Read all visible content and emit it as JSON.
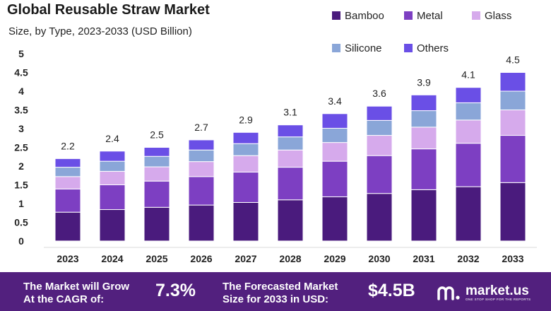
{
  "header": {
    "title": "Global Reusable Straw Market",
    "subtitle": "Size, by Type, 2023-2033 (USD Billion)"
  },
  "colors": {
    "Bamboo": "#4a1b7d",
    "Metal": "#7d3fc2",
    "Glass": "#d6aaec",
    "Silicone": "#8aa6d8",
    "Others": "#6a4fe6",
    "banner": "#52207e"
  },
  "chart_data": {
    "type": "bar",
    "stacked": true,
    "title": "Global Reusable Straw Market",
    "subtitle": "Size, by Type, 2023-2033 (USD Billion)",
    "xlabel": "",
    "ylabel": "",
    "ylim": [
      0,
      5
    ],
    "yticks": [
      "0",
      "0.5",
      "1",
      "1.5",
      "2",
      "2.5",
      "3",
      "3.5",
      "4",
      "4.5",
      "5"
    ],
    "grid": false,
    "legend_position": "top-right",
    "categories": [
      "2023",
      "2024",
      "2025",
      "2026",
      "2027",
      "2028",
      "2029",
      "2030",
      "2031",
      "2032",
      "2033"
    ],
    "totals": [
      2.2,
      2.4,
      2.5,
      2.7,
      2.9,
      3.1,
      3.4,
      3.6,
      3.9,
      4.1,
      4.5
    ],
    "total_labels": [
      "2.2",
      "2.4",
      "2.5",
      "2.7",
      "2.9",
      "3.1",
      "3.4",
      "3.6",
      "3.9",
      "4.1",
      "4.5"
    ],
    "series": [
      {
        "name": "Bamboo",
        "values": [
          0.77,
          0.84,
          0.9,
          0.96,
          1.03,
          1.1,
          1.18,
          1.27,
          1.37,
          1.45,
          1.56
        ]
      },
      {
        "name": "Metal",
        "values": [
          0.62,
          0.66,
          0.7,
          0.76,
          0.81,
          0.87,
          0.95,
          1.01,
          1.09,
          1.16,
          1.26
        ]
      },
      {
        "name": "Glass",
        "values": [
          0.33,
          0.36,
          0.38,
          0.4,
          0.44,
          0.46,
          0.5,
          0.54,
          0.58,
          0.62,
          0.68
        ]
      },
      {
        "name": "Silicone",
        "values": [
          0.25,
          0.27,
          0.28,
          0.31,
          0.32,
          0.35,
          0.38,
          0.4,
          0.44,
          0.46,
          0.5
        ]
      },
      {
        "name": "Others",
        "values": [
          0.23,
          0.27,
          0.24,
          0.27,
          0.3,
          0.32,
          0.39,
          0.38,
          0.42,
          0.41,
          0.5
        ]
      }
    ]
  },
  "banner": {
    "cagr_text_line1": "The Market will Grow",
    "cagr_text_line2": "At the CAGR of:",
    "cagr_value": "7.3%",
    "forecast_text_line1": "The Forecasted Market",
    "forecast_text_line2": "Size for 2033 in USD:",
    "forecast_value": "$4.5B",
    "logo_name": "market.us",
    "logo_tagline": "ONE STOP SHOP FOR THE REPORTS"
  }
}
